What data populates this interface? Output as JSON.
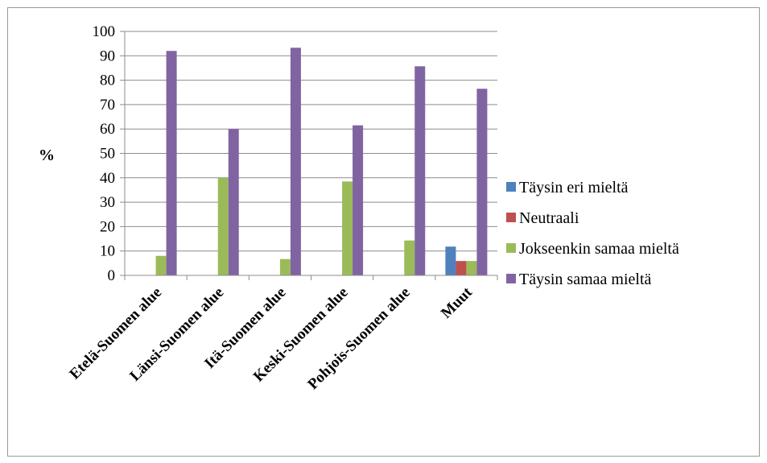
{
  "chart_data": {
    "type": "bar",
    "title": "",
    "xlabel": "",
    "ylabel": "%",
    "ylim": [
      0,
      100
    ],
    "yticks": [
      0,
      10,
      20,
      30,
      40,
      50,
      60,
      70,
      80,
      90,
      100
    ],
    "grid": true,
    "legend_position": "right",
    "categories": [
      "Etelä-Suomen alue",
      "Länsi-Suomen alue",
      "Itä-Suomen alue",
      "Keski-Suomen alue",
      "Pohjois-Suomen alue",
      "Muut"
    ],
    "series": [
      {
        "name": "Täysin eri mieltä",
        "color": "#4F81BD",
        "values": [
          0,
          0,
          0,
          0,
          0,
          11.8
        ]
      },
      {
        "name": "Neutraali",
        "color": "#C0504D",
        "values": [
          0,
          0,
          0,
          0,
          0,
          5.9
        ]
      },
      {
        "name": "Jokseenkin samaa mieltä",
        "color": "#9BBB59",
        "values": [
          8,
          40,
          6.7,
          38.5,
          14.3,
          5.9
        ]
      },
      {
        "name": "Täysin samaa mieltä",
        "color": "#8064A2",
        "values": [
          92,
          60,
          93.3,
          61.5,
          85.7,
          76.5
        ]
      }
    ]
  }
}
